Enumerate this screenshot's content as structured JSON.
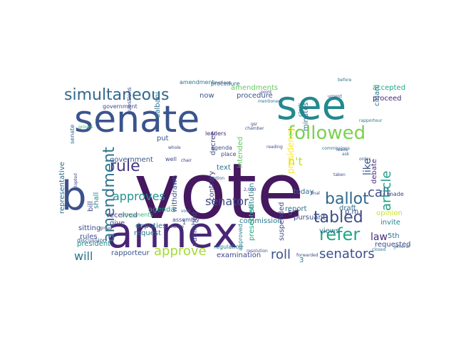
{
  "word_cloud": {
    "words": [
      {
        "text": "vote",
        "color": "#46185f"
      },
      {
        "text": "annex",
        "color": "#482576"
      },
      {
        "text": "senate",
        "color": "#3a548c"
      },
      {
        "text": "see",
        "color": "#23898e"
      },
      {
        "text": "b",
        "color": "#3b518b"
      },
      {
        "text": "followed",
        "color": "#7ad151"
      },
      {
        "text": "simultaneous",
        "color": "#31688e"
      },
      {
        "text": "amendment",
        "color": "#2c738e"
      },
      {
        "text": "tabled",
        "color": "#3e4c8a"
      },
      {
        "text": "refer",
        "color": "#21a685"
      },
      {
        "text": "ballot",
        "color": "#30688e"
      },
      {
        "text": "senators",
        "color": "#3c508b"
      },
      {
        "text": "approve",
        "color": "#a5db36"
      },
      {
        "text": "approves",
        "color": "#20928c"
      },
      {
        "text": "rule",
        "color": "#443983"
      },
      {
        "text": "senator",
        "color": "#3e4a89"
      },
      {
        "text": "roll",
        "color": "#3b518b"
      },
      {
        "text": "call",
        "color": "#3d4d8a"
      },
      {
        "text": "will",
        "color": "#2c728e"
      },
      {
        "text": "article",
        "color": "#1f9e89"
      },
      {
        "text": "like",
        "color": "#39568c"
      },
      {
        "text": "law",
        "color": "#472d7b"
      },
      {
        "text": "n't",
        "color": "#c2df23"
      },
      {
        "text": "amendments",
        "color": "#65cb5e"
      },
      {
        "text": "commission",
        "color": "#2a768e"
      },
      {
        "text": "text",
        "color": "#2c718e"
      },
      {
        "text": "procedure",
        "color": "#3b528b"
      },
      {
        "text": "proceed",
        "color": "#482576"
      },
      {
        "text": "government",
        "color": "#38588c"
      },
      {
        "text": "agenda",
        "color": "#1f998a"
      },
      {
        "text": "rapporteur",
        "color": "#3a548c"
      },
      {
        "text": "examination",
        "color": "#3f4788"
      },
      {
        "text": "received",
        "color": "#453781"
      },
      {
        "text": "give",
        "color": "#3c4f8a"
      },
      {
        "text": "deputies",
        "color": "#2d708e"
      },
      {
        "text": "request",
        "color": "#2c728e"
      },
      {
        "text": "rules",
        "color": "#3d4e8a"
      },
      {
        "text": "president",
        "color": "#20928c"
      },
      {
        "text": "sitting",
        "color": "#3e4a89"
      },
      {
        "text": "discussion",
        "color": "#3a538b"
      },
      {
        "text": "representative",
        "color": "#2e6e8e"
      },
      {
        "text": "bill",
        "color": "#404588"
      },
      {
        "text": "shall",
        "color": "#24868e"
      },
      {
        "text": "constitution",
        "color": "#26818e"
      },
      {
        "text": "presidency",
        "color": "#fde725"
      },
      {
        "text": "intended",
        "color": "#5ec962"
      },
      {
        "text": "decree",
        "color": "#3e4989"
      },
      {
        "text": "contrary",
        "color": "#404688"
      },
      {
        "text": "published",
        "color": "#3f4889"
      },
      {
        "text": "presented",
        "color": "#22a884"
      },
      {
        "text": "suspended",
        "color": "#3f4788"
      },
      {
        "text": "minutes",
        "color": "#2d708e"
      },
      {
        "text": "report",
        "color": "#2d708e"
      },
      {
        "text": "today",
        "color": "#2e6e8e"
      },
      {
        "text": "draft",
        "color": "#2d708e"
      },
      {
        "text": "debate",
        "color": "#472c7a"
      },
      {
        "text": "made",
        "color": "#3f4788"
      },
      {
        "text": "invite",
        "color": "#26828e"
      },
      {
        "text": "opinion",
        "color": "#cde11d"
      },
      {
        "text": "5th",
        "color": "#2c738e"
      },
      {
        "text": "p.m.",
        "color": "#3f4889"
      },
      {
        "text": "pursuant",
        "color": "#3d4e8a"
      },
      {
        "text": "views",
        "color": "#2c728e"
      },
      {
        "text": "requested",
        "color": "#3f4788"
      },
      {
        "text": "accepted",
        "color": "#22a884"
      },
      {
        "text": "ciriani",
        "color": "#2a788e"
      },
      {
        "text": "well",
        "color": "#3e4a89"
      },
      {
        "text": "put",
        "color": "#3a548c"
      },
      {
        "text": "now",
        "color": "#3b528b"
      },
      {
        "text": "withdrawn",
        "color": "#3a538b"
      },
      {
        "text": "assembly",
        "color": "#3e4c8a"
      },
      {
        "text": "approved",
        "color": "#27808e"
      },
      {
        "text": "documents",
        "color": "#35b779"
      },
      {
        "text": "dalbani",
        "color": "#2d708e"
      },
      {
        "text": "questions",
        "color": "#3d4e8a"
      },
      {
        "text": "leaders",
        "color": "#472c7a"
      },
      {
        "text": "place",
        "color": "#404688"
      },
      {
        "text": "amendment",
        "color": "#2c728e"
      },
      {
        "text": "procedure",
        "color": "#2d708e"
      },
      {
        "text": "agenda",
        "color": "#3b528b"
      },
      {
        "text": "government",
        "color": "#3e4989"
      },
      {
        "text": "clerk",
        "color": "#26828e"
      },
      {
        "text": "senate",
        "color": "#31688e"
      },
      {
        "text": "chamber",
        "color": "#3b528b"
      },
      {
        "text": "house",
        "color": "#3e4a89"
      },
      {
        "text": "group",
        "color": "#3f4788"
      },
      {
        "text": "groups",
        "color": "#35b779"
      },
      {
        "text": "general",
        "color": "#2d708e"
      },
      {
        "text": "closed",
        "color": "#2a788e"
      },
      {
        "text": "forwarded",
        "color": "#3e4c8a"
      },
      {
        "text": "resolution",
        "color": "#3b528b"
      },
      {
        "text": "2,000",
        "color": "#404588"
      },
      {
        "text": "final",
        "color": "#3f4788"
      },
      {
        "text": "ask",
        "color": "#2c728e"
      },
      {
        "text": "regulation",
        "color": "#2a768e"
      },
      {
        "text": "adopted",
        "color": "#3e4a89"
      },
      {
        "text": "1",
        "color": "#3e4c8a"
      },
      {
        "text": "3",
        "color": "#26818e"
      },
      {
        "text": "5",
        "color": "#3a538b"
      },
      {
        "text": "gsr",
        "color": "#3f4889"
      },
      {
        "text": "motions",
        "color": "#3b528b"
      },
      {
        "text": "before",
        "color": "#2c738e"
      },
      {
        "text": "leave",
        "color": "#3e4a89"
      },
      {
        "text": "whole",
        "color": "#404688"
      },
      {
        "text": "vote",
        "color": "#2d708e"
      },
      {
        "text": "motion",
        "color": "#3b528b"
      },
      {
        "text": "rapporteur",
        "color": "#2a788e"
      },
      {
        "text": "chair",
        "color": "#472c7a"
      },
      {
        "text": "reading",
        "color": "#3e4c8a"
      },
      {
        "text": "urgent",
        "color": "#3d4e8a"
      },
      {
        "text": "commissions",
        "color": "#2c718e"
      },
      {
        "text": "point",
        "color": "#3f4788"
      },
      {
        "text": "taken",
        "color": "#3e4a89"
      },
      {
        "text": "order",
        "color": "#3b528b"
      },
      {
        "text": "mentioned",
        "color": "#2c728e"
      }
    ]
  }
}
